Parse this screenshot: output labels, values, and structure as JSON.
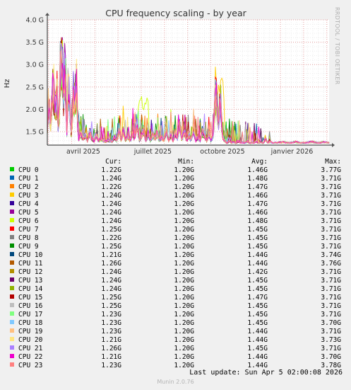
{
  "chart_data": {
    "type": "line",
    "title": "CPU frequency scaling - by year",
    "ylabel": "Hz",
    "ylim": [
      1.2,
      4.0
    ],
    "yticks": [
      "1.5 G",
      "2.0 G",
      "2.5 G",
      "3.0 G",
      "3.5 G",
      "4.0 G"
    ],
    "ytick_values": [
      1.5,
      2.0,
      2.5,
      3.0,
      3.5,
      4.0
    ],
    "xticks": [
      "avril 2025",
      "juillet 2025",
      "octobre 2025",
      "janvier 2026"
    ],
    "grid": true,
    "legend_headers": {
      "cur": "Cur:",
      "min": "Min:",
      "avg": "Avg:",
      "max": "Max:"
    },
    "series": [
      {
        "name": "CPU 0",
        "color": "#00cc00",
        "cur": "1.22G",
        "min": "1.20G",
        "avg": "1.46G",
        "max": "3.77G"
      },
      {
        "name": "CPU 1",
        "color": "#0066b3",
        "cur": "1.24G",
        "min": "1.20G",
        "avg": "1.48G",
        "max": "3.71G"
      },
      {
        "name": "CPU 2",
        "color": "#ff8000",
        "cur": "1.22G",
        "min": "1.20G",
        "avg": "1.47G",
        "max": "3.71G"
      },
      {
        "name": "CPU 3",
        "color": "#ffcc00",
        "cur": "1.24G",
        "min": "1.20G",
        "avg": "1.46G",
        "max": "3.71G"
      },
      {
        "name": "CPU 4",
        "color": "#330099",
        "cur": "1.24G",
        "min": "1.20G",
        "avg": "1.47G",
        "max": "3.71G"
      },
      {
        "name": "CPU 5",
        "color": "#990099",
        "cur": "1.24G",
        "min": "1.20G",
        "avg": "1.46G",
        "max": "3.71G"
      },
      {
        "name": "CPU 6",
        "color": "#ccff00",
        "cur": "1.24G",
        "min": "1.20G",
        "avg": "1.48G",
        "max": "3.71G"
      },
      {
        "name": "CPU 7",
        "color": "#ff0000",
        "cur": "1.25G",
        "min": "1.20G",
        "avg": "1.45G",
        "max": "3.71G"
      },
      {
        "name": "CPU 8",
        "color": "#808080",
        "cur": "1.22G",
        "min": "1.20G",
        "avg": "1.45G",
        "max": "3.71G"
      },
      {
        "name": "CPU 9",
        "color": "#008f00",
        "cur": "1.25G",
        "min": "1.20G",
        "avg": "1.45G",
        "max": "3.71G"
      },
      {
        "name": "CPU 10",
        "color": "#00487d",
        "cur": "1.21G",
        "min": "1.20G",
        "avg": "1.44G",
        "max": "3.74G"
      },
      {
        "name": "CPU 11",
        "color": "#b35a00",
        "cur": "1.26G",
        "min": "1.20G",
        "avg": "1.44G",
        "max": "3.76G"
      },
      {
        "name": "CPU 12",
        "color": "#b38f00",
        "cur": "1.24G",
        "min": "1.20G",
        "avg": "1.42G",
        "max": "3.71G"
      },
      {
        "name": "CPU 13",
        "color": "#6b006b",
        "cur": "1.24G",
        "min": "1.20G",
        "avg": "1.45G",
        "max": "3.71G"
      },
      {
        "name": "CPU 14",
        "color": "#8fb300",
        "cur": "1.24G",
        "min": "1.20G",
        "avg": "1.45G",
        "max": "3.71G"
      },
      {
        "name": "CPU 15",
        "color": "#b30000",
        "cur": "1.25G",
        "min": "1.20G",
        "avg": "1.47G",
        "max": "3.71G"
      },
      {
        "name": "CPU 16",
        "color": "#bebebe",
        "cur": "1.25G",
        "min": "1.20G",
        "avg": "1.45G",
        "max": "3.71G"
      },
      {
        "name": "CPU 17",
        "color": "#80ff80",
        "cur": "1.23G",
        "min": "1.20G",
        "avg": "1.45G",
        "max": "3.71G"
      },
      {
        "name": "CPU 18",
        "color": "#80c9ff",
        "cur": "1.23G",
        "min": "1.20G",
        "avg": "1.45G",
        "max": "3.70G"
      },
      {
        "name": "CPU 19",
        "color": "#ffc080",
        "cur": "1.23G",
        "min": "1.20G",
        "avg": "1.44G",
        "max": "3.71G"
      },
      {
        "name": "CPU 20",
        "color": "#ffe680",
        "cur": "1.21G",
        "min": "1.20G",
        "avg": "1.44G",
        "max": "3.73G"
      },
      {
        "name": "CPU 21",
        "color": "#aa80ff",
        "cur": "1.26G",
        "min": "1.20G",
        "avg": "1.45G",
        "max": "3.71G"
      },
      {
        "name": "CPU 22",
        "color": "#ee00cc",
        "cur": "1.21G",
        "min": "1.20G",
        "avg": "1.44G",
        "max": "3.70G"
      },
      {
        "name": "CPU 23",
        "color": "#ff8080",
        "cur": "1.23G",
        "min": "1.20G",
        "avg": "1.44G",
        "max": "3.78G"
      }
    ],
    "aggregate_profile": {
      "t": [
        0,
        0.005,
        0.012,
        0.02,
        0.028,
        0.035,
        0.04,
        0.046,
        0.052,
        0.058,
        0.064,
        0.069,
        0.074,
        0.08,
        0.086,
        0.092,
        0.098,
        0.104,
        0.11,
        0.118,
        0.126,
        0.134,
        0.142,
        0.15,
        0.158,
        0.166,
        0.174,
        0.182,
        0.19,
        0.198,
        0.206,
        0.214,
        0.222,
        0.23,
        0.238,
        0.246,
        0.254,
        0.262,
        0.27,
        0.278,
        0.286,
        0.294,
        0.302,
        0.31,
        0.318,
        0.326,
        0.334,
        0.342,
        0.35,
        0.358,
        0.366,
        0.374,
        0.382,
        0.39,
        0.398,
        0.406,
        0.414,
        0.422,
        0.43,
        0.438,
        0.446,
        0.454,
        0.462,
        0.47,
        0.478,
        0.486,
        0.494,
        0.502,
        0.51,
        0.518,
        0.526,
        0.534,
        0.542,
        0.55,
        0.558,
        0.566,
        0.574,
        0.582,
        0.59,
        0.598,
        0.606,
        0.614,
        0.622,
        0.63,
        0.638,
        0.646,
        0.654,
        0.662,
        0.67,
        0.678,
        0.686,
        0.694,
        0.702,
        0.71,
        0.718,
        0.726,
        0.734,
        0.742,
        0.75,
        0.758,
        0.766,
        0.774,
        0.782,
        0.79,
        0.8,
        0.82,
        0.84,
        0.86,
        0.88,
        0.9,
        0.92,
        0.94,
        0.96,
        0.98,
        1.0
      ],
      "v": [
        1.6,
        2.2,
        1.7,
        2.6,
        2.0,
        2.4,
        1.4,
        3.0,
        3.4,
        2.3,
        3.2,
        1.4,
        2.8,
        2.2,
        1.3,
        2.5,
        2.2,
        2.7,
        1.3,
        1.5,
        1.35,
        1.45,
        1.3,
        1.5,
        1.35,
        1.3,
        1.45,
        1.3,
        1.35,
        1.3,
        1.28,
        1.32,
        1.3,
        1.28,
        1.4,
        1.3,
        1.6,
        1.3,
        1.55,
        1.3,
        1.45,
        1.3,
        1.5,
        1.35,
        1.8,
        1.3,
        1.45,
        1.55,
        1.3,
        1.5,
        1.3,
        1.45,
        1.35,
        1.5,
        1.3,
        1.4,
        1.3,
        1.6,
        1.3,
        1.45,
        1.3,
        1.5,
        1.35,
        1.7,
        1.3,
        1.55,
        1.3,
        1.45,
        1.3,
        1.6,
        1.3,
        1.4,
        1.3,
        1.5,
        1.45,
        1.3,
        1.5,
        1.3,
        1.5,
        2.6,
        1.6,
        2.3,
        1.4,
        1.3,
        1.25,
        1.3,
        1.25,
        1.28,
        1.24,
        1.3,
        1.25,
        1.27,
        1.25,
        1.3,
        1.24,
        1.26,
        1.25,
        1.3,
        1.25,
        1.27,
        1.24,
        1.35,
        1.25,
        1.28,
        1.25,
        1.26,
        1.27,
        1.25,
        1.28,
        1.25,
        1.26,
        1.28,
        1.25,
        1.27,
        1.25
      ]
    }
  },
  "side_label": "RRDTOOL / TOBI OETIKER",
  "last_update": "Last update:  Sun Apr  5 02:00:08 2026",
  "footer": "Munin 2.0.76"
}
